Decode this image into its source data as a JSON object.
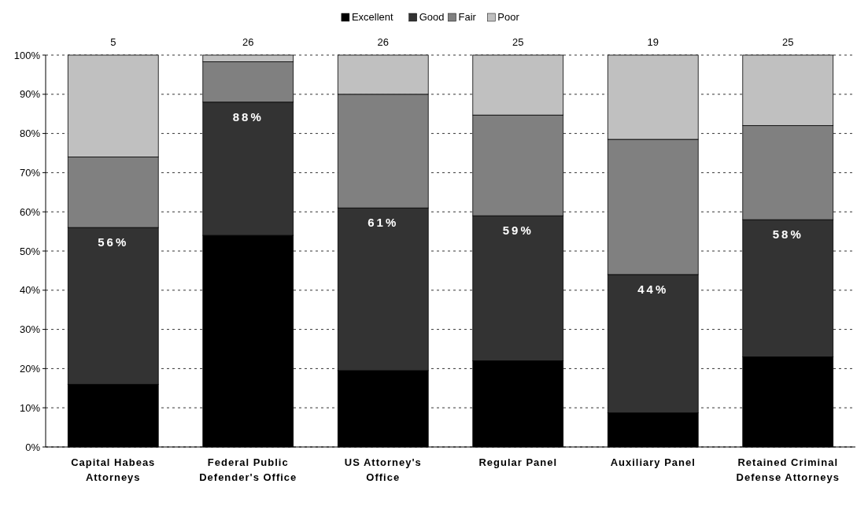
{
  "chart_data": {
    "type": "bar",
    "stacked": true,
    "categories": [
      "Capital Habeas Attorneys",
      "Federal Public Defender's Office",
      "US Attorney's Office",
      "Regular Panel",
      "Auxiliary Panel",
      "Retained Criminal Defense Attorneys"
    ],
    "series": [
      {
        "name": "Excellent",
        "color": "#000000",
        "values": [
          16,
          54,
          19.5,
          22,
          8.7,
          23
        ]
      },
      {
        "name": "Good",
        "color": "#333333",
        "values": [
          40,
          34,
          41.5,
          37,
          35.3,
          35
        ]
      },
      {
        "name": "Fair",
        "color": "#808080",
        "values": [
          18,
          10.3,
          29,
          25.7,
          34.5,
          24
        ]
      },
      {
        "name": "Poor",
        "color": "#c0c0c0",
        "values": [
          26,
          1.7,
          10,
          15.3,
          21.5,
          18
        ]
      }
    ],
    "ylim": [
      0,
      100
    ],
    "yticks": [
      {
        "value": 0,
        "label": "0%"
      },
      {
        "value": 10,
        "label": "10%"
      },
      {
        "value": 20,
        "label": "20%"
      },
      {
        "value": 30,
        "label": "30%"
      },
      {
        "value": 40,
        "label": "40%"
      },
      {
        "value": 50,
        "label": "50%"
      },
      {
        "value": 60,
        "label": "60%"
      },
      {
        "value": 70,
        "label": "70%"
      },
      {
        "value": 80,
        "label": "80%"
      },
      {
        "value": 90,
        "label": "90%"
      },
      {
        "value": 100,
        "label": "100%"
      }
    ],
    "grid": "y",
    "legend": "top",
    "annotations": [
      {
        "text": "5",
        "x": "Capital Habeas Attorneys",
        "y": 100
      },
      {
        "text": "26",
        "x": "Federal Public Defender's Office",
        "y": 100
      },
      {
        "text": "26",
        "x": "US Attorney's Office",
        "y": 100
      },
      {
        "text": "25",
        "x": "Regular Panel",
        "y": 100
      },
      {
        "text": "19",
        "x": "Auxiliary Panel",
        "y": 100
      },
      {
        "text": "25",
        "x": "Retained Criminal Defense Attorneys",
        "y": 100
      },
      {
        "text": "56%",
        "x": "Capital Habeas Attorneys",
        "y": 56
      },
      {
        "text": "88%",
        "x": "Federal Public Defender's Office",
        "y": 88
      },
      {
        "text": "61%",
        "x": "US Attorney's Office",
        "y": 61
      },
      {
        "text": "59%",
        "x": "Regular Panel",
        "y": 59
      },
      {
        "text": "44%",
        "x": "Auxiliary Panel",
        "y": 44
      },
      {
        "text": "58%",
        "x": "Retained Criminal Defense Attorneys",
        "y": 58
      }
    ]
  }
}
